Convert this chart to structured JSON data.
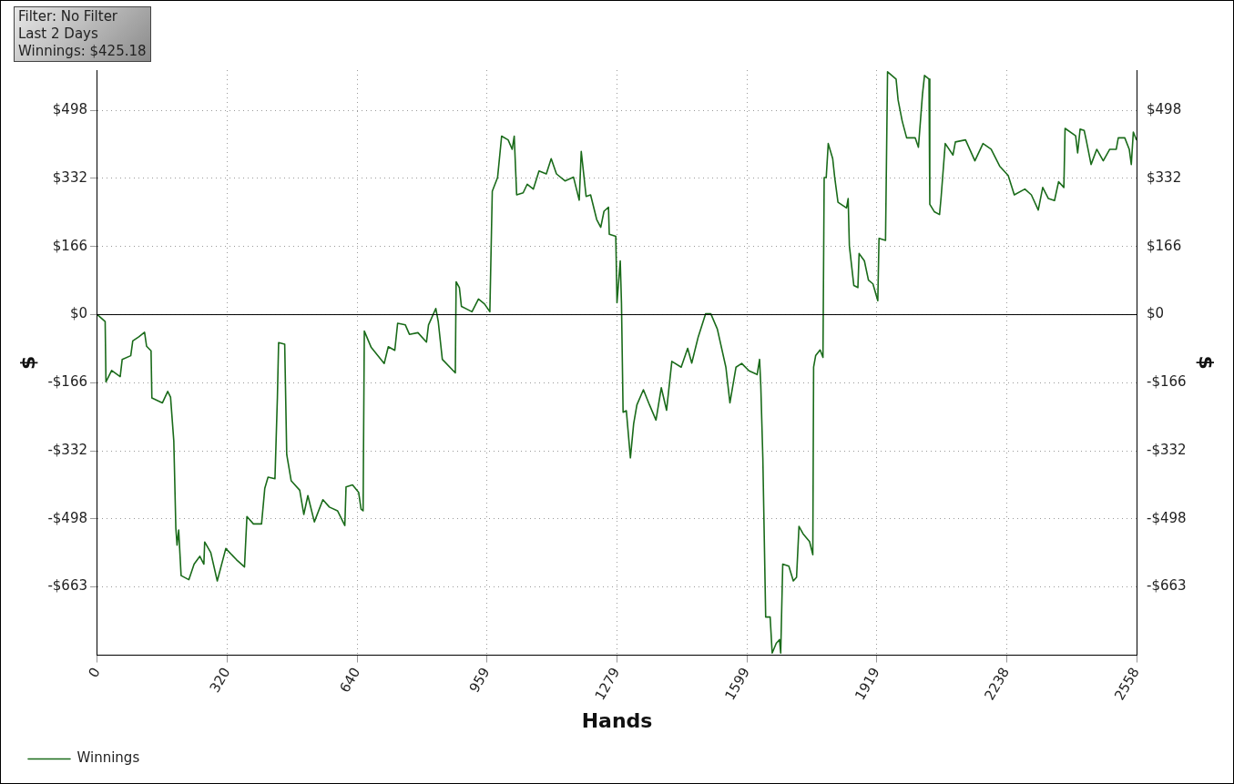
{
  "chart_data": {
    "type": "line",
    "xlabel": "Hands",
    "ylabel": "$",
    "y2label": "$",
    "annotations": [
      "Filter: No Filter",
      "Last 2 Days",
      "Winnings: $425.18"
    ],
    "xlim": [
      0,
      2558
    ],
    "xticks": [
      0,
      320,
      640,
      959,
      1279,
      1599,
      1919,
      2238,
      2558
    ],
    "ylim": [
      -830,
      596
    ],
    "yticks": [
      {
        "value": -663,
        "label": "-$663"
      },
      {
        "value": -498,
        "label": "-$498"
      },
      {
        "value": -332,
        "label": "-$332"
      },
      {
        "value": -166,
        "label": "-$166"
      },
      {
        "value": 0,
        "label": "$0"
      },
      {
        "value": 166,
        "label": "$166"
      },
      {
        "value": 332,
        "label": "$332"
      },
      {
        "value": 498,
        "label": "$498"
      }
    ],
    "y2lim": [
      -830,
      596
    ],
    "y2ticks": [
      {
        "value": -663,
        "label": "-$663"
      },
      {
        "value": -498,
        "label": "-$498"
      },
      {
        "value": -332,
        "label": "-$332"
      },
      {
        "value": -166,
        "label": "-$166"
      },
      {
        "value": 0,
        "label": "$0"
      },
      {
        "value": 166,
        "label": "$166"
      },
      {
        "value": 332,
        "label": "$332"
      },
      {
        "value": 498,
        "label": "$498"
      }
    ],
    "ref_lines": [
      {
        "axis": "y",
        "value": 0,
        "color": "#000000"
      }
    ],
    "grid": true,
    "legend": "bottom left",
    "marker": "none",
    "line_style": "solid",
    "series": [
      {
        "name": "Winnings",
        "color": "#1a6b1a",
        "x": [
          0,
          19,
          21,
          35,
          56,
          61,
          82,
          87,
          102,
          116,
          121,
          132,
          134,
          160,
          173,
          180,
          188,
          193,
          196,
          200,
          206,
          225,
          238,
          252,
          262,
          264,
          279,
          295,
          316,
          342,
          362,
          368,
          384,
          404,
          412,
          420,
          437,
          443,
          446,
          461,
          466,
          477,
          498,
          508,
          518,
          534,
          555,
          571,
          591,
          609,
          612,
          628,
          643,
          649,
          654,
          657,
          674,
          706,
          716,
          732,
          739,
          758,
          768,
          789,
          810,
          815,
          833,
          839,
          849,
          881,
          883,
          891,
          896,
          922,
          938,
          953,
          966,
          972,
          985,
          995,
          1011,
          1021,
          1026,
          1032,
          1048,
          1058,
          1073,
          1087,
          1105,
          1117,
          1130,
          1151,
          1172,
          1186,
          1191,
          1203,
          1214,
          1229,
          1239,
          1247,
          1258,
          1260,
          1276,
          1279,
          1287,
          1290,
          1294,
          1302,
          1312,
          1320,
          1328,
          1344,
          1359,
          1375,
          1388,
          1401,
          1414,
          1437,
          1453,
          1463,
          1479,
          1497,
          1510,
          1526,
          1547,
          1557,
          1572,
          1586,
          1604,
          1624,
          1630,
          1633,
          1638,
          1645,
          1656,
          1661,
          1671,
          1679,
          1682,
          1687,
          1702,
          1713,
          1721,
          1727,
          1737,
          1753,
          1761,
          1763,
          1768,
          1779,
          1786,
          1789,
          1794,
          1799,
          1810,
          1815,
          1823,
          1844,
          1848,
          1851,
          1862,
          1872,
          1875,
          1888,
          1898,
          1909,
          1921,
          1924,
          1940,
          1945,
          1966,
          1971,
          1981,
          1992,
          2013,
          2021,
          2031,
          2036,
          2047,
          2049,
          2060,
          2073,
          2077,
          2087,
          2106,
          2112,
          2137,
          2160,
          2180,
          2200,
          2221,
          2242,
          2257,
          2283,
          2299,
          2316,
          2327,
          2341,
          2356,
          2366,
          2379,
          2382,
          2408,
          2413,
          2419,
          2429,
          2434,
          2446,
          2460,
          2476,
          2492,
          2508,
          2513,
          2529,
          2540,
          2545,
          2550,
          2558
        ],
        "values": [
          0,
          -17,
          -164,
          -136,
          -151,
          -109,
          -100,
          -64,
          -54,
          -43,
          -77,
          -88,
          -203,
          -215,
          -187,
          -201,
          -308,
          -520,
          -562,
          -525,
          -636,
          -646,
          -608,
          -589,
          -608,
          -554,
          -580,
          -649,
          -570,
          -597,
          -615,
          -492,
          -510,
          -510,
          -423,
          -396,
          -400,
          -202,
          -68,
          -72,
          -341,
          -405,
          -428,
          -487,
          -441,
          -505,
          -451,
          -469,
          -478,
          -514,
          -420,
          -415,
          -433,
          -474,
          -478,
          -40,
          -80,
          -119,
          -78,
          -87,
          -21,
          -25,
          -48,
          -44,
          -67,
          -25,
          15,
          -17,
          -109,
          -142,
          80,
          66,
          20,
          7,
          38,
          26,
          7,
          301,
          334,
          435,
          426,
          403,
          435,
          292,
          297,
          318,
          306,
          350,
          343,
          380,
          343,
          326,
          335,
          279,
          398,
          288,
          292,
          232,
          213,
          252,
          262,
          196,
          191,
          29,
          131,
          29,
          -238,
          -234,
          -349,
          -266,
          -220,
          -183,
          -220,
          -257,
          -178,
          -233,
          -114,
          -128,
          -82,
          -118,
          -54,
          2,
          2,
          -35,
          -128,
          -215,
          -128,
          -119,
          -137,
          -146,
          -109,
          -174,
          -349,
          -737,
          -737,
          -825,
          -801,
          -792,
          -825,
          -608,
          -613,
          -649,
          -640,
          -516,
          -534,
          -553,
          -585,
          -128,
          -100,
          -86,
          -104,
          334,
          334,
          417,
          380,
          334,
          274,
          260,
          283,
          168,
          71,
          66,
          149,
          131,
          84,
          75,
          34,
          186,
          181,
          592,
          574,
          523,
          472,
          431,
          431,
          408,
          537,
          583,
          574,
          269,
          251,
          244,
          288,
          417,
          389,
          421,
          426,
          375,
          417,
          403,
          362,
          339,
          292,
          306,
          292,
          255,
          310,
          283,
          278,
          324,
          310,
          454,
          436,
          394,
          452,
          449,
          426,
          366,
          403,
          375,
          403,
          403,
          431,
          431,
          403,
          366,
          445,
          425
        ]
      }
    ]
  }
}
